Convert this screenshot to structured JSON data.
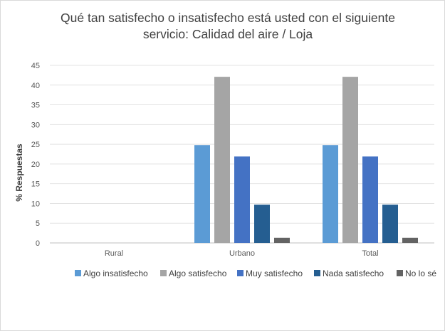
{
  "chart_data": {
    "type": "bar",
    "title_line1": "Qué tan satisfecho o insatisfecho está usted con el siguiente",
    "title_line2": "servicio: Calidad del aire / Loja",
    "ylabel": "% Respuestas",
    "xlabel": "",
    "ylim": [
      0,
      45
    ],
    "yticks": [
      0,
      5,
      10,
      15,
      20,
      25,
      30,
      35,
      40,
      45
    ],
    "categories": [
      "Rural",
      "Urbano",
      "Total"
    ],
    "grid": true,
    "legend_position": "bottom",
    "series": [
      {
        "name": "Algo insatisfecho",
        "color": "#5b9bd5",
        "values": [
          0,
          24.8,
          24.8
        ]
      },
      {
        "name": "Algo satisfecho",
        "color": "#a5a5a5",
        "values": [
          0,
          42.1,
          42.1
        ]
      },
      {
        "name": "Muy satisfecho",
        "color": "#4472c4",
        "values": [
          0,
          21.9,
          21.9
        ]
      },
      {
        "name": "Nada satisfecho",
        "color": "#255e91",
        "values": [
          0,
          9.7,
          9.7
        ]
      },
      {
        "name": "No lo sé",
        "color": "#636363",
        "values": [
          0,
          1.3,
          1.3
        ]
      }
    ]
  }
}
